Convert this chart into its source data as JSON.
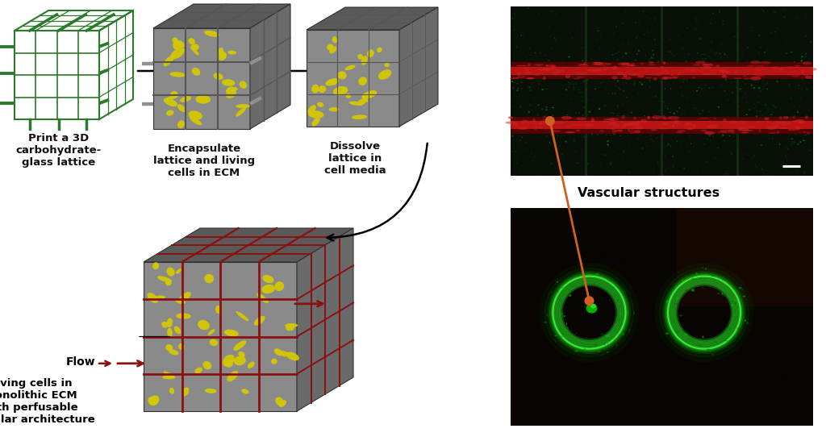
{
  "fig_width": 10.24,
  "fig_height": 5.47,
  "bg_color": "#ffffff",
  "labels": {
    "step1": "Print a 3D\ncarbohydrate-\nglass lattice",
    "step2": "Encapsulate\nlattice and living\ncells in ECM",
    "step3": "Dissolve\nlattice in\ncell media",
    "step4_flow": "Flow",
    "step4_desc": "Living cells in\nmonolithic ECM\nwith perfusable\nvascular architecture",
    "vascular": "Vascular structures"
  },
  "colors": {
    "green_lattice": "#2a7a2a",
    "dark_red": "#8b1010",
    "arrow_black": "#111111",
    "arrow_orange": "#d06020",
    "text_black": "#111111",
    "cube_front": "#8a8a8a",
    "cube_top": "#5a5a5a",
    "cube_right": "#6a6a6a",
    "yellow_cell": "#d4c800",
    "flow_arrow": "#8b1010",
    "img1_bg": "#081008",
    "img2_bg": "#080402"
  }
}
